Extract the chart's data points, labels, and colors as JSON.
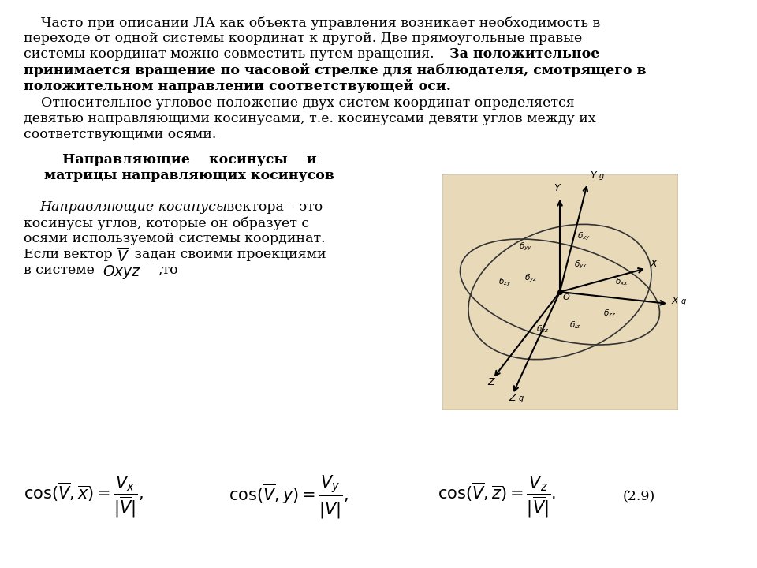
{
  "background_color": "#ffffff",
  "page_width": 9.6,
  "page_height": 7.2,
  "dpi": 100,
  "para1": "    Часто при описании ЛА как объекта управления возникает необходимость в переходе от одной системы координат к другой. Две прямоугольные правые системы координат можно совместить путем вращения. ",
  "para1_bold": "За положительное принимается вращение по часовой стрелке для наблюдателя, смотрящего в положительном направлении соответствующей оси.",
  "para2": "    Относительное угловое положение двух систем координат определяется девятью направляющими косинусами, т.е. косинусами девяти углов между их соответствующими осями.",
  "heading_bold": "Направляющие    косинусы    и\nматрицы направляющих косинусов",
  "para3_italic": "Направляющие косинусы",
  "para3_rest": " вектора – это косинусы углов, которые он образует с осями используемой системы координат. Если вектор ",
  "para3_V": "V",
  "para3_rest2": " задан своими проекциями в системе ",
  "para3_Oxyz": "Oxyz",
  "para3_rest3": " ,то",
  "image_path": null,
  "image_beige": "#e8d9b8",
  "formula_label": "(2.9)"
}
